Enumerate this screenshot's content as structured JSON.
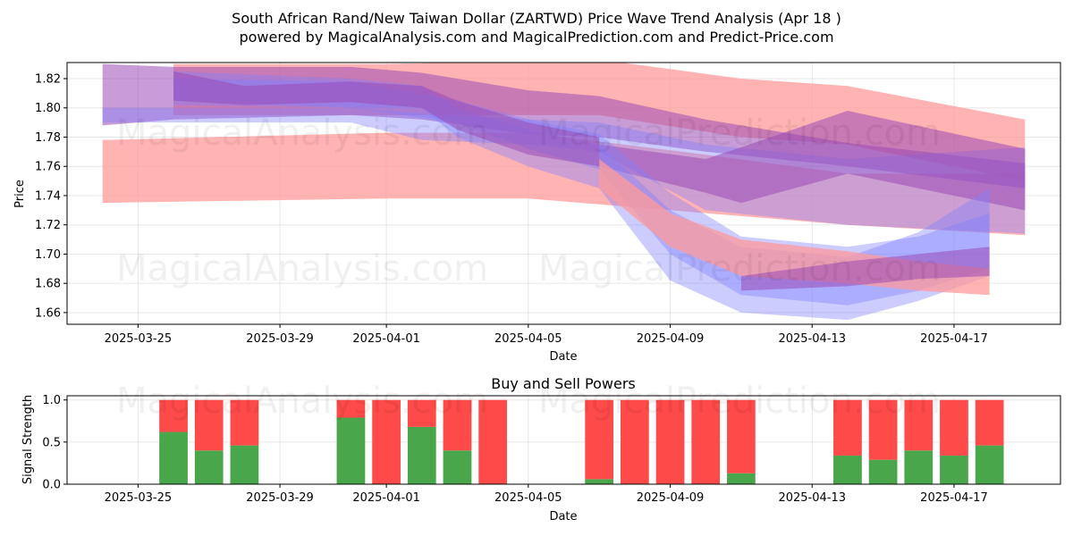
{
  "title_line1": "South African Rand/New Taiwan Dollar (ZARTWD) Price Wave Trend Analysis (Apr 18 )",
  "title_line2": "powered by MagicalAnalysis.com and MagicalPrediction.com and Predict-Price.com",
  "watermarks": [
    "MagicalAnalysis.com",
    "MagicalPrediction.com"
  ],
  "colors": {
    "buy": "#4aa64a",
    "sell": "#ff4a4a",
    "red_band": "#ff9a9a",
    "blue_band": "#8080ff",
    "purple_band": "#9a4ab4"
  },
  "chart_data": [
    {
      "type": "area",
      "title": "",
      "xlabel": "Date",
      "ylabel": "Price",
      "x_ticks": [
        "2025-03-25",
        "2025-03-29",
        "2025-04-01",
        "2025-04-05",
        "2025-04-09",
        "2025-04-13",
        "2025-04-17"
      ],
      "y_ticks": [
        "1.66",
        "1.68",
        "1.70",
        "1.72",
        "1.74",
        "1.76",
        "1.78",
        "1.80",
        "1.82"
      ],
      "xlim": [
        "2025-03-23",
        "2025-04-20"
      ],
      "ylim": [
        1.652,
        1.831
      ],
      "grid": true,
      "bands": [
        {
          "color": "red",
          "x": [
            "2025-03-24",
            "2025-04-01",
            "2025-04-05",
            "2025-04-10",
            "2025-04-14",
            "2025-04-19"
          ],
          "upper": [
            1.778,
            1.783,
            1.783,
            1.768,
            1.755,
            1.755
          ],
          "lower": [
            1.735,
            1.738,
            1.738,
            1.728,
            1.72,
            1.713
          ]
        },
        {
          "color": "red",
          "x": [
            "2025-03-26",
            "2025-04-01",
            "2025-04-07",
            "2025-04-11",
            "2025-04-14",
            "2025-04-19"
          ],
          "upper": [
            1.83,
            1.83,
            1.833,
            1.82,
            1.815,
            1.792
          ],
          "lower": [
            1.795,
            1.795,
            1.795,
            1.78,
            1.775,
            1.75
          ]
        },
        {
          "color": "purple",
          "x": [
            "2025-03-24",
            "2025-03-26",
            "2025-03-31",
            "2025-04-02",
            "2025-04-05",
            "2025-04-07",
            "2025-04-10",
            "2025-04-14",
            "2025-04-19"
          ],
          "upper": [
            1.83,
            1.828,
            1.828,
            1.824,
            1.812,
            1.808,
            1.792,
            1.776,
            1.762
          ],
          "lower": [
            1.788,
            1.792,
            1.795,
            1.792,
            1.782,
            1.78,
            1.77,
            1.76,
            1.745
          ]
        },
        {
          "color": "blue",
          "x": [
            "2025-03-24",
            "2025-03-31",
            "2025-04-02",
            "2025-04-05",
            "2025-04-07",
            "2025-04-10",
            "2025-04-14",
            "2025-04-19"
          ],
          "upper": [
            1.8,
            1.8,
            1.796,
            1.792,
            1.79,
            1.775,
            1.765,
            1.773
          ],
          "lower": [
            1.79,
            1.79,
            1.778,
            1.775,
            1.77,
            1.73,
            1.72,
            1.714
          ]
        },
        {
          "color": "purple",
          "x": [
            "2025-04-07",
            "2025-04-10",
            "2025-04-11",
            "2025-04-14",
            "2025-04-19"
          ],
          "upper": [
            1.775,
            1.765,
            1.773,
            1.798,
            1.772
          ],
          "lower": [
            1.76,
            1.742,
            1.735,
            1.755,
            1.73
          ]
        },
        {
          "color": "blue",
          "x": [
            "2025-03-26",
            "2025-03-31",
            "2025-04-02",
            "2025-04-03",
            "2025-04-05",
            "2025-04-07",
            "2025-04-09",
            "2025-04-11",
            "2025-04-14",
            "2025-04-16",
            "2025-04-18"
          ],
          "upper": [
            1.825,
            1.82,
            1.815,
            1.8,
            1.785,
            1.775,
            1.73,
            1.705,
            1.698,
            1.715,
            1.745
          ],
          "lower": [
            1.805,
            1.8,
            1.8,
            1.78,
            1.76,
            1.745,
            1.682,
            1.66,
            1.655,
            1.668,
            1.685
          ]
        },
        {
          "color": "blue",
          "x": [
            "2025-03-26",
            "2025-03-31",
            "2025-04-03",
            "2025-04-05",
            "2025-04-07",
            "2025-04-09",
            "2025-04-11",
            "2025-04-14",
            "2025-04-16",
            "2025-04-18"
          ],
          "upper": [
            1.82,
            1.818,
            1.805,
            1.792,
            1.782,
            1.742,
            1.712,
            1.705,
            1.712,
            1.728
          ],
          "lower": [
            1.802,
            1.8,
            1.79,
            1.772,
            1.758,
            1.7,
            1.672,
            1.665,
            1.675,
            1.69
          ]
        },
        {
          "color": "red",
          "x": [
            "2025-04-07",
            "2025-04-09",
            "2025-04-11",
            "2025-04-14",
            "2025-04-16",
            "2025-04-18"
          ],
          "upper": [
            1.765,
            1.728,
            1.71,
            1.702,
            1.695,
            1.69
          ],
          "lower": [
            1.745,
            1.705,
            1.685,
            1.68,
            1.675,
            1.672
          ]
        },
        {
          "color": "purple",
          "x": [
            "2025-03-26",
            "2025-03-28",
            "2025-03-31",
            "2025-04-02",
            "2025-04-03",
            "2025-04-05",
            "2025-04-07"
          ],
          "upper": [
            1.825,
            1.815,
            1.818,
            1.815,
            1.805,
            1.79,
            1.78
          ],
          "lower": [
            1.805,
            1.802,
            1.804,
            1.8,
            1.785,
            1.768,
            1.76
          ]
        },
        {
          "color": "purple",
          "x": [
            "2025-04-11",
            "2025-04-14",
            "2025-04-16",
            "2025-04-18"
          ],
          "upper": [
            1.685,
            1.695,
            1.7,
            1.705
          ],
          "lower": [
            1.675,
            1.678,
            1.683,
            1.685
          ]
        }
      ]
    },
    {
      "type": "bar",
      "title": "Buy and Sell Powers",
      "xlabel": "Date",
      "ylabel": "Signal Strength",
      "x_ticks": [
        "2025-03-25",
        "2025-03-29",
        "2025-04-01",
        "2025-04-05",
        "2025-04-09",
        "2025-04-13",
        "2025-04-17"
      ],
      "y_ticks": [
        "0.0",
        "0.5",
        "1.0"
      ],
      "xlim": [
        "2025-03-23",
        "2025-04-20"
      ],
      "ylim": [
        0,
        1.05
      ],
      "grid": true,
      "categories": [
        "2025-03-26",
        "2025-03-27",
        "2025-03-28",
        "2025-03-31",
        "2025-04-01",
        "2025-04-02",
        "2025-04-03",
        "2025-04-04",
        "2025-04-07",
        "2025-04-08",
        "2025-04-09",
        "2025-04-10",
        "2025-04-11",
        "2025-04-14",
        "2025-04-15",
        "2025-04-16",
        "2025-04-17",
        "2025-04-18"
      ],
      "series": [
        {
          "values": [
            0.62,
            0.4,
            0.46,
            0.79,
            0.0,
            0.68,
            0.4,
            0.0,
            0.06,
            0.0,
            0.0,
            0.0,
            0.13,
            0.34,
            0.29,
            0.4,
            0.34,
            0.46
          ]
        },
        {
          "values": [
            0.38,
            0.6,
            0.54,
            0.21,
            1.0,
            0.32,
            0.6,
            1.0,
            0.94,
            1.0,
            1.0,
            1.0,
            0.87,
            0.66,
            0.71,
            0.6,
            0.66,
            0.54
          ]
        }
      ]
    }
  ]
}
